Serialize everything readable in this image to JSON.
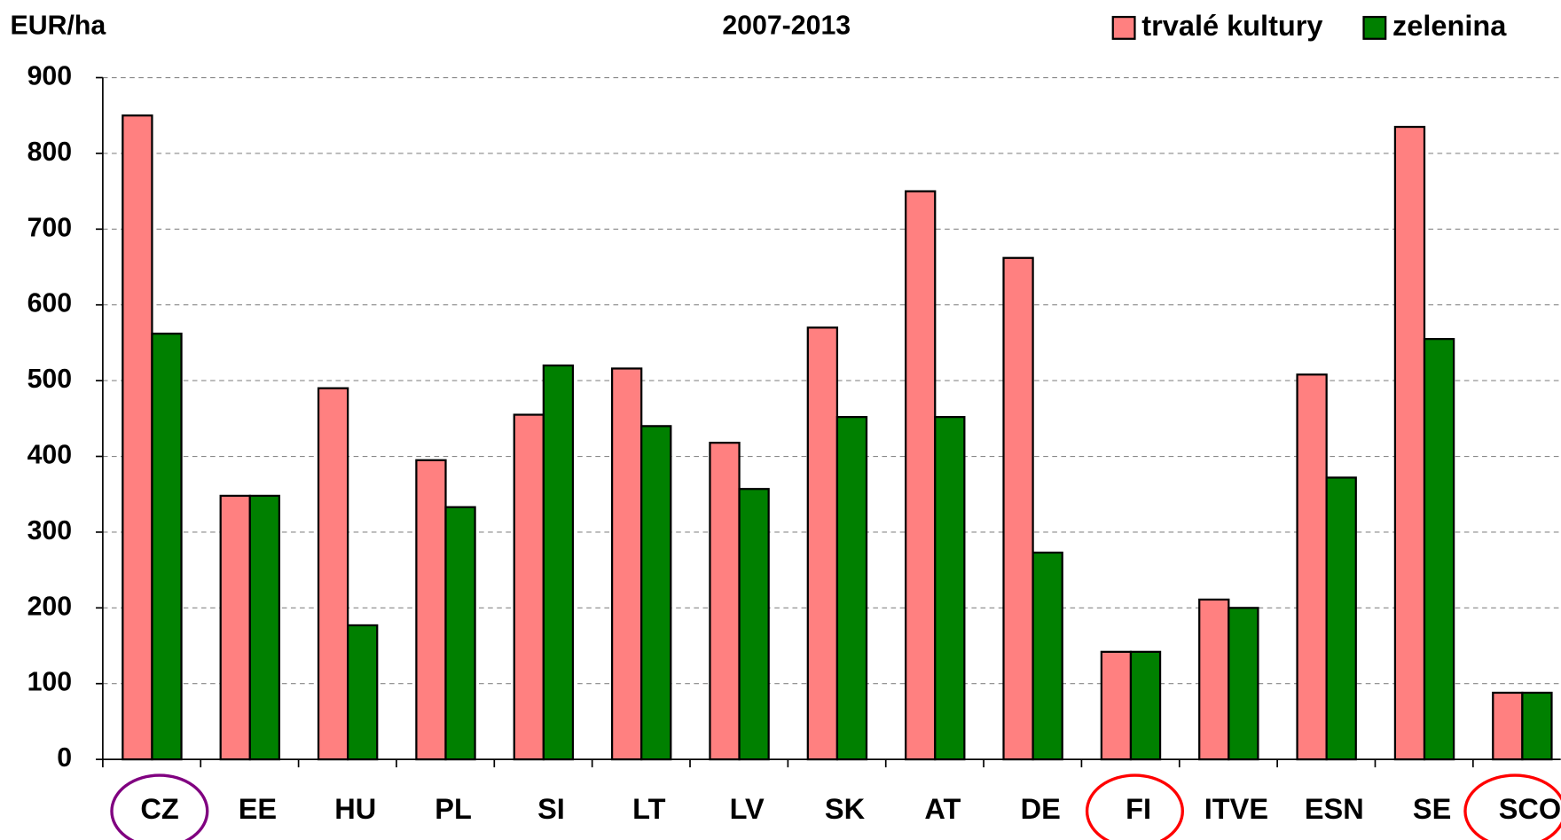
{
  "chart_data": {
    "type": "bar",
    "title": "2007-2013",
    "y_label": "EUR/ha",
    "categories": [
      "CZ",
      "EE",
      "HU",
      "PL",
      "SI",
      "LT",
      "LV",
      "SK",
      "AT",
      "DE",
      "FI",
      "ITVE",
      "ESN",
      "SE",
      "SCO"
    ],
    "series": [
      {
        "name": "trvalé kultury",
        "color": "#ff8080",
        "values": [
          850,
          348,
          490,
          395,
          455,
          516,
          418,
          570,
          750,
          662,
          142,
          211,
          508,
          835,
          88
        ]
      },
      {
        "name": "zelenina",
        "color": "#008000",
        "values": [
          562,
          348,
          177,
          333,
          520,
          440,
          357,
          452,
          452,
          273,
          142,
          200,
          372,
          555,
          88
        ]
      }
    ],
    "ylim": [
      0,
      900
    ],
    "yticks": [
      0,
      100,
      200,
      300,
      400,
      500,
      600,
      700,
      800,
      900
    ],
    "grid": true,
    "legend": "top-right"
  }
}
